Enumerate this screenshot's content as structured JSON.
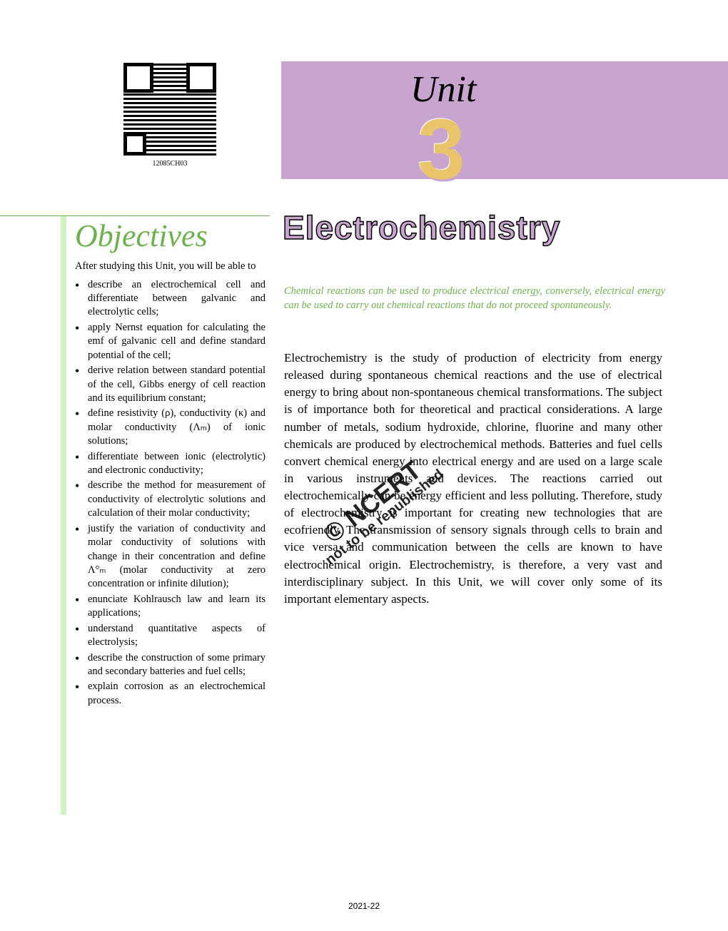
{
  "qr": {
    "label": "12085CH03"
  },
  "unit": {
    "label": "Unit",
    "number": "3"
  },
  "chapter_title": "Electrochemistry",
  "objectives": {
    "heading": "Objectives",
    "intro": "After studying this Unit, you will be able to",
    "items": [
      "describe an electrochemical cell and differentiate between galvanic and electrolytic cells;",
      "apply Nernst equation for calculating the emf of galvanic cell and define standard potential of the cell;",
      "derive relation between standard potential of the cell, Gibbs energy of cell reaction and its equilibrium constant;",
      "define resistivity (ρ), conductivity (κ) and molar conductivity (Λₘ) of ionic solutions;",
      "differentiate between ionic (electrolytic) and electronic conductivity;",
      "describe the method for measurement of conductivity of electrolytic solutions and calculation of their molar conductivity;",
      "justify the variation of conductivity and molar conductivity of solutions with change in their concentration and define Λ°ₘ (molar conductivity at zero concentration or infinite dilution);",
      "enunciate Kohlrausch law and learn its applications;",
      "understand quantitative aspects of electrolysis;",
      "describe the construction of some primary and secondary batteries and fuel cells;",
      "explain corrosion as an electrochemical process."
    ]
  },
  "tagline": "Chemical reactions can be used to produce electrical energy, conversely, electrical energy can be used to carry out chemical reactions that do not proceed spontaneously.",
  "body": "Electrochemistry is the study of production of electricity from energy released during spontaneous chemical reactions and the use of electrical energy to bring about non-spontaneous chemical transformations. The subject is of importance both for theoretical and practical considerations. A large number of metals, sodium hydroxide, chlorine, fluorine and many other chemicals are produced by electrochemical methods. Batteries and fuel cells convert chemical energy into electrical energy and are used on a large scale in various instruments and devices. The reactions carried out electrochemically can be energy efficient and less polluting. Therefore, study of electrochemistry is important for creating new technologies that are ecofriendly. The transmission of sensory signals through cells to brain and vice versa and communication between the cells are known to have electrochemical origin. Electrochemistry, is therefore, a very vast and interdisciplinary subject. In this Unit, we will cover only some of its important elementary aspects.",
  "watermark": {
    "line1": "© NCERT",
    "line2": "not to be republished"
  },
  "footer": "2021-22",
  "colors": {
    "banner_bg": "#c8a5cf",
    "objectives_border": "#cff4c4",
    "objectives_heading": "#6db04e",
    "tagline_color": "#6db04e",
    "unit_number_fill": "#e9c46a"
  }
}
